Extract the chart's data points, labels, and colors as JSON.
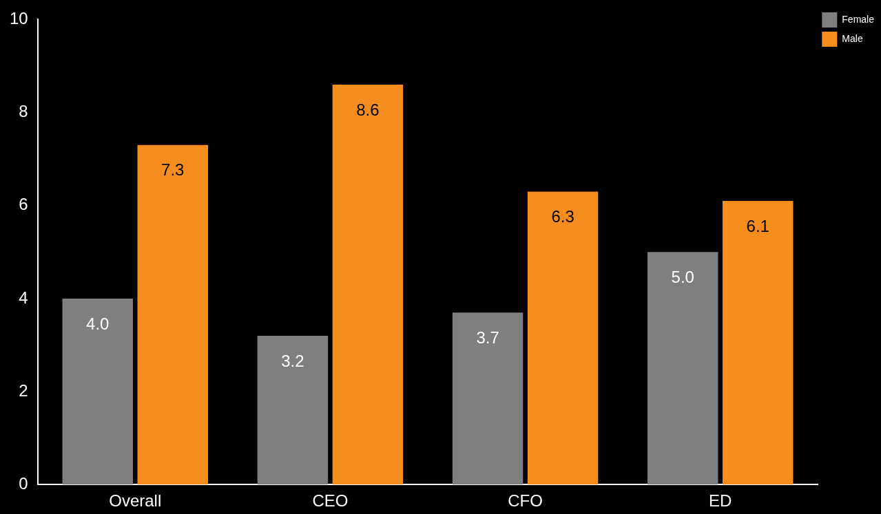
{
  "chart_data": {
    "type": "bar",
    "categories": [
      "Overall",
      "CEO",
      "CFO",
      "ED"
    ],
    "series": [
      {
        "name": "Female",
        "color": "#7f807e",
        "values": [
          4.0,
          3.2,
          3.7,
          5.0
        ],
        "value_labels": [
          "4.0",
          "3.2",
          "3.7",
          "5.0"
        ]
      },
      {
        "name": "Male",
        "color": "#f68e1f",
        "values": [
          7.3,
          8.6,
          6.3,
          6.1
        ],
        "value_labels": [
          "7.3",
          "8.6",
          "6.3",
          "6.1"
        ]
      }
    ],
    "ylim": [
      0,
      10
    ],
    "yticks": [
      0,
      2,
      4,
      6,
      8,
      10
    ],
    "grid": false,
    "legend": "top right"
  }
}
